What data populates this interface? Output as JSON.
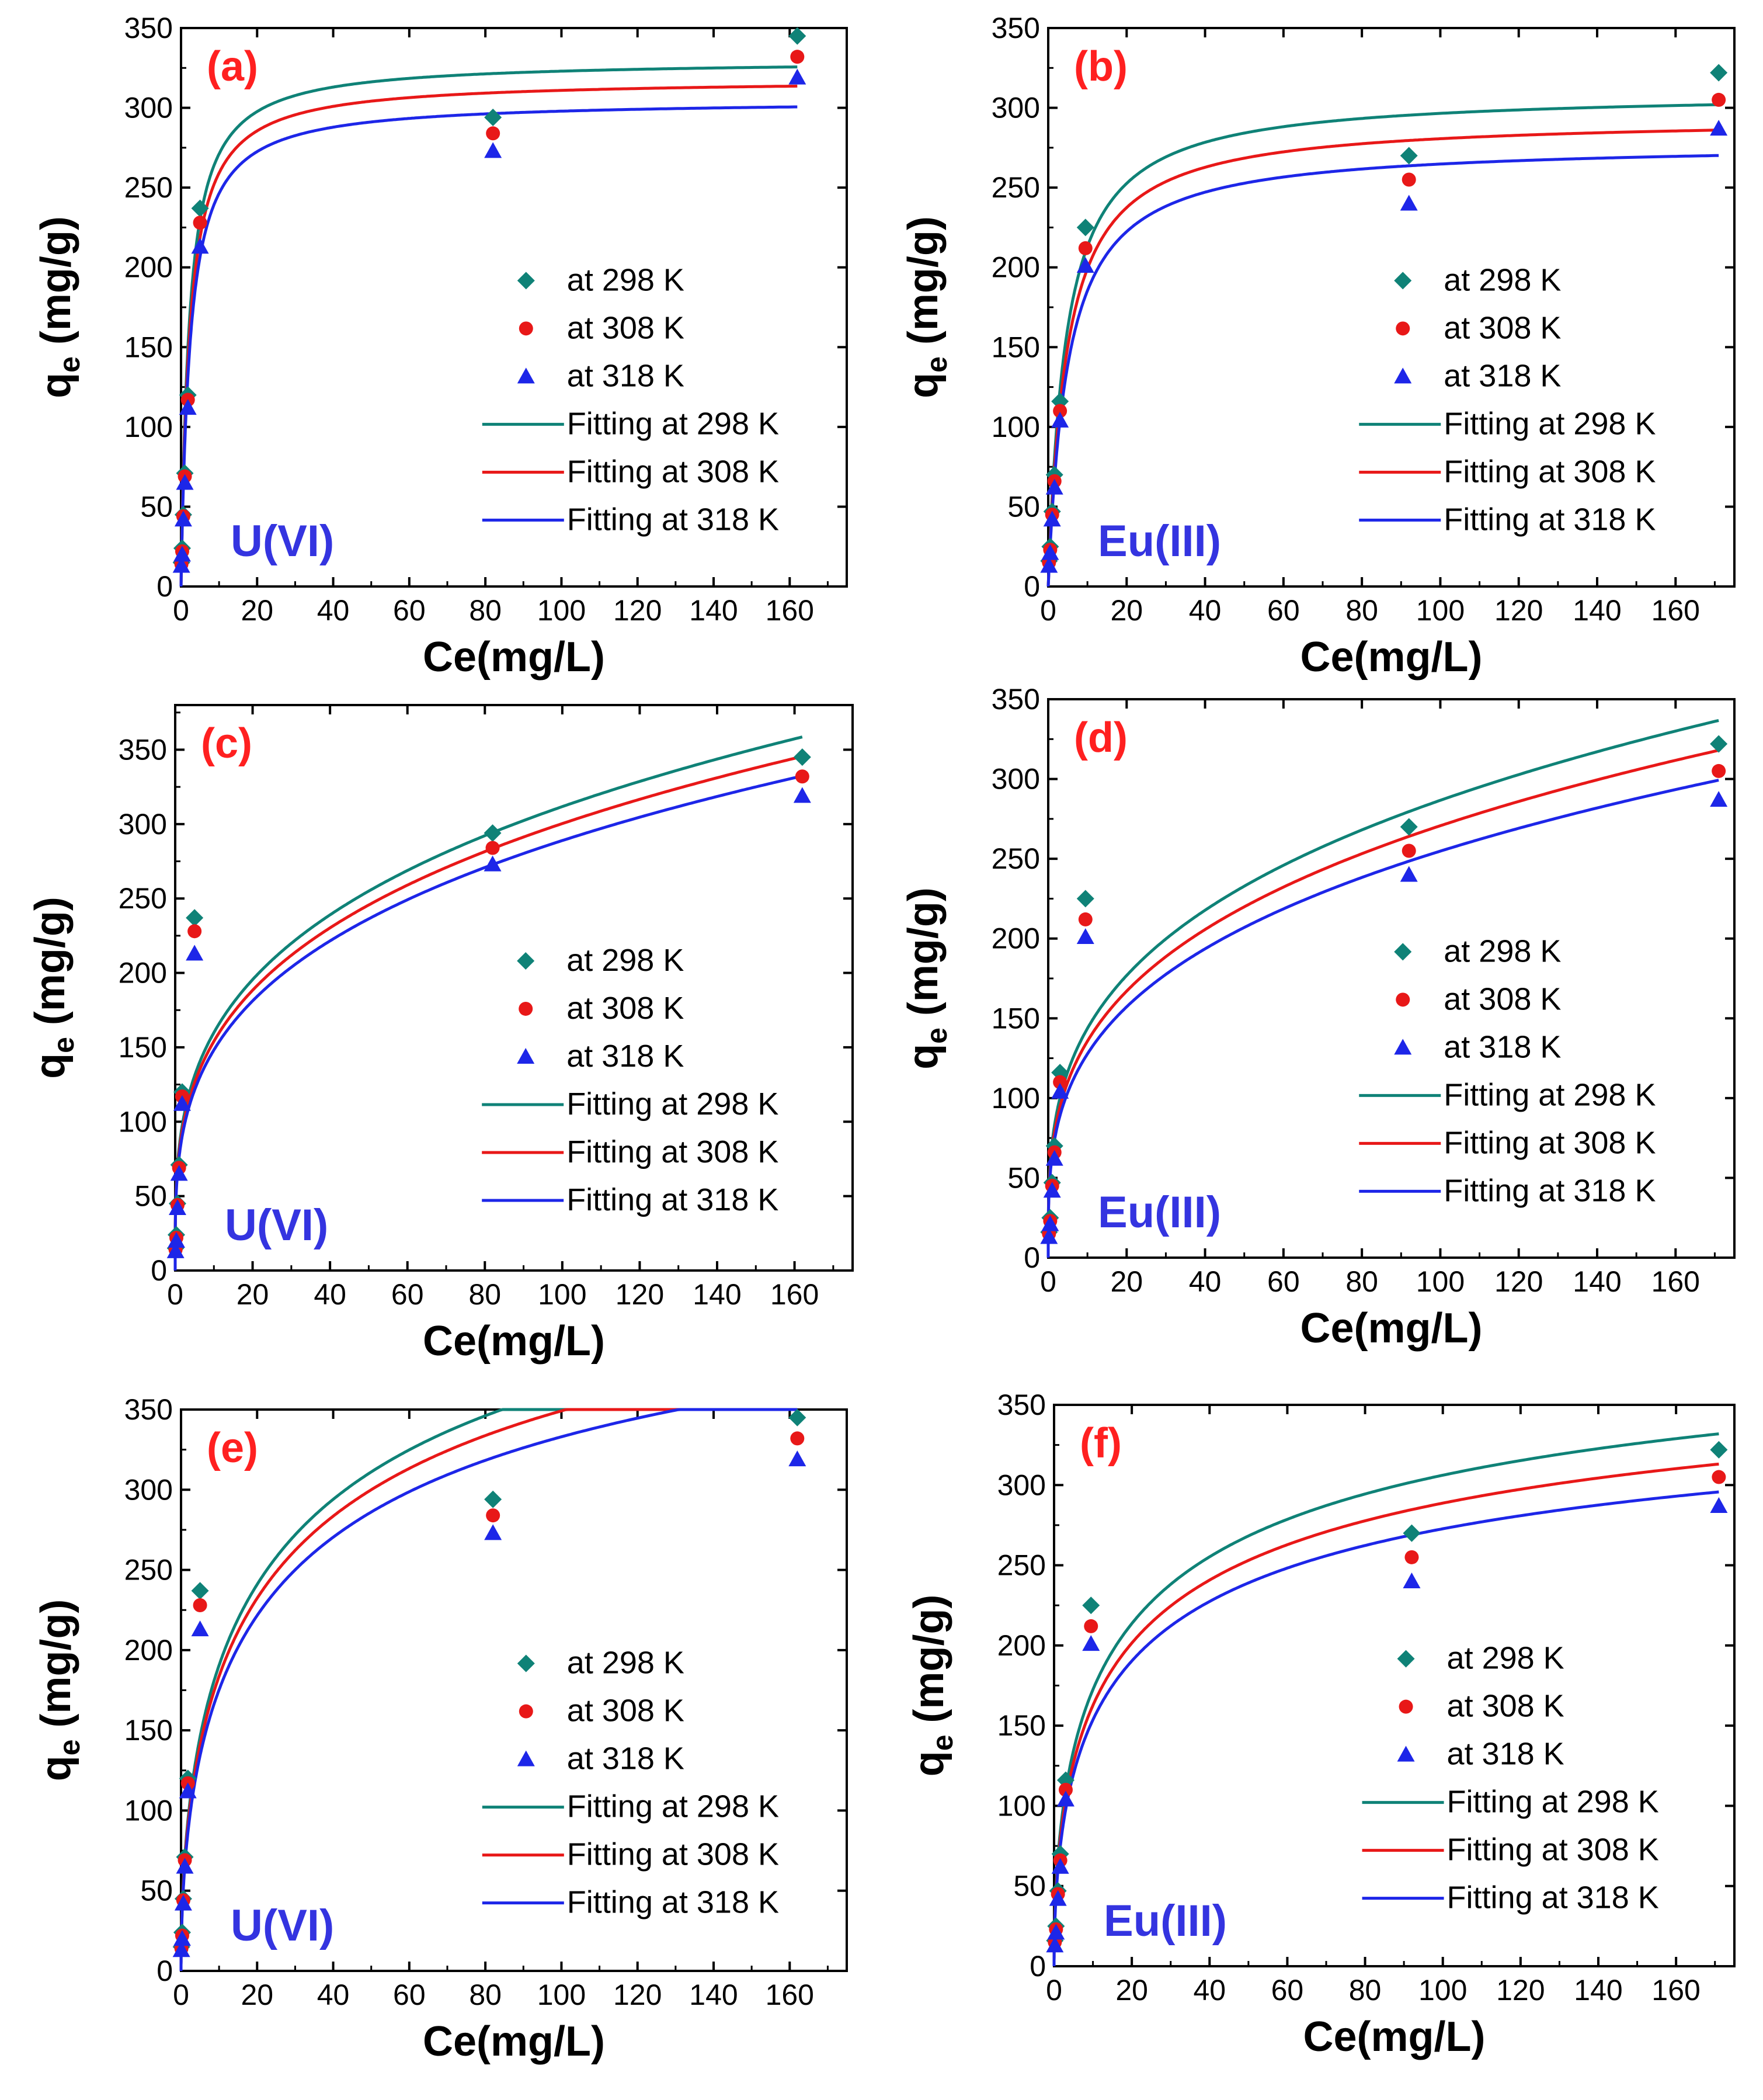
{
  "figure": {
    "description_free": true
  },
  "chart_data": [
    {
      "id": "a",
      "type": "scatter",
      "panel_label": "(a)",
      "ion_label": "U(VI)",
      "xlabel": "Ce(mg/L)",
      "ylabel_main": "q",
      "ylabel_sub": "e",
      "ylabel_unit": " (mg/g)",
      "xlim": [
        0,
        175
      ],
      "ylim": [
        0,
        350
      ],
      "xticks": [
        0,
        20,
        40,
        60,
        80,
        100,
        120,
        140,
        160
      ],
      "yticks": [
        0,
        50,
        100,
        150,
        200,
        250,
        300,
        350
      ],
      "model": {
        "kind": "langmuir",
        "params": [
          [
            330,
            0.46
          ],
          [
            318,
            0.44
          ],
          [
            305,
            0.42
          ]
        ]
      },
      "x": [
        0.1,
        0.3,
        0.6,
        1.0,
        1.8,
        5.0,
        82,
        162
      ],
      "series": [
        {
          "name": "at 298 K",
          "marker": "diamond",
          "color": "#0f8277",
          "values": [
            15,
            24,
            45,
            71,
            120,
            237,
            294,
            345
          ]
        },
        {
          "name": "at 308 K",
          "marker": "circle",
          "color": "#e81818",
          "values": [
            14,
            22,
            44,
            69,
            117,
            228,
            284,
            332
          ]
        },
        {
          "name": "at 318 K",
          "marker": "triangle",
          "color": "#1d26e8",
          "values": [
            13,
            20,
            42,
            65,
            112,
            213,
            273,
            319
          ]
        }
      ],
      "fit_series": [
        {
          "name": "Fitting at 298 K",
          "color": "#0f8277"
        },
        {
          "name": "Fitting at 308 K",
          "color": "#e81818"
        },
        {
          "name": "Fitting at 318 K",
          "color": "#1d26e8"
        }
      ]
    },
    {
      "id": "b",
      "type": "scatter",
      "panel_label": "(b)",
      "ion_label": "Eu(III)",
      "xlabel": "Ce(mg/L)",
      "ylabel_main": "q",
      "ylabel_sub": "e",
      "ylabel_unit": " (mg/g)",
      "xlim": [
        0,
        175
      ],
      "ylim": [
        0,
        350
      ],
      "xticks": [
        0,
        20,
        40,
        60,
        80,
        100,
        120,
        140,
        160
      ],
      "yticks": [
        0,
        50,
        100,
        150,
        200,
        250,
        300,
        350
      ],
      "model": {
        "kind": "langmuir",
        "params": [
          [
            310,
            0.22
          ],
          [
            294,
            0.21
          ],
          [
            278,
            0.2
          ]
        ]
      },
      "x": [
        0.2,
        0.5,
        1.0,
        1.6,
        3.0,
        9.5,
        92,
        171
      ],
      "series": [
        {
          "name": "at 298 K",
          "marker": "diamond",
          "color": "#0f8277",
          "values": [
            16,
            25,
            47,
            70,
            116,
            225,
            270,
            322
          ]
        },
        {
          "name": "at 308 K",
          "marker": "circle",
          "color": "#e81818",
          "values": [
            15,
            23,
            45,
            66,
            110,
            212,
            255,
            305
          ]
        },
        {
          "name": "at 318 K",
          "marker": "triangle",
          "color": "#1d26e8",
          "values": [
            13,
            21,
            42,
            62,
            104,
            201,
            240,
            287
          ]
        }
      ],
      "fit_series": [
        {
          "name": "Fitting at 298 K",
          "color": "#0f8277"
        },
        {
          "name": "Fitting at 308 K",
          "color": "#e81818"
        },
        {
          "name": "Fitting at 318 K",
          "color": "#1d26e8"
        }
      ]
    },
    {
      "id": "c",
      "type": "scatter",
      "panel_label": "(c)",
      "ion_label": "U(VI)",
      "xlabel": "Ce(mg/L)",
      "ylabel_main": "q",
      "ylabel_sub": "e",
      "ylabel_unit": " (mg/g)",
      "xlim": [
        0,
        175
      ],
      "ylim": [
        0,
        380
      ],
      "xticks": [
        0,
        20,
        40,
        60,
        80,
        100,
        120,
        140,
        160
      ],
      "yticks": [
        0,
        50,
        100,
        150,
        200,
        250,
        300,
        350
      ],
      "model": {
        "kind": "freundlich",
        "params": [
          [
            82,
            0.29
          ],
          [
            79,
            0.29
          ],
          [
            76,
            0.29
          ]
        ]
      },
      "x": [
        0.1,
        0.3,
        0.6,
        1.0,
        1.8,
        5.0,
        82,
        162
      ],
      "series": [
        {
          "name": "at 298 K",
          "marker": "diamond",
          "color": "#0f8277",
          "values": [
            15,
            24,
            45,
            71,
            120,
            237,
            294,
            345
          ]
        },
        {
          "name": "at 308 K",
          "marker": "circle",
          "color": "#e81818",
          "values": [
            14,
            22,
            44,
            69,
            117,
            228,
            284,
            332
          ]
        },
        {
          "name": "at 318 K",
          "marker": "triangle",
          "color": "#1d26e8",
          "values": [
            13,
            20,
            42,
            65,
            112,
            213,
            273,
            319
          ]
        }
      ],
      "fit_series": [
        {
          "name": "Fitting at 298 K",
          "color": "#0f8277"
        },
        {
          "name": "Fitting at 308 K",
          "color": "#e81818"
        },
        {
          "name": "Fitting at 318 K",
          "color": "#1d26e8"
        }
      ]
    },
    {
      "id": "d",
      "type": "scatter",
      "panel_label": "(d)",
      "ion_label": "Eu(III)",
      "xlabel": "Ce(mg/L)",
      "ylabel_main": "q",
      "ylabel_sub": "e",
      "ylabel_unit": " (mg/g)",
      "xlim": [
        0,
        175
      ],
      "ylim": [
        0,
        350
      ],
      "xticks": [
        0,
        20,
        40,
        60,
        80,
        100,
        120,
        140,
        160
      ],
      "yticks": [
        0,
        50,
        100,
        150,
        200,
        250,
        300,
        350
      ],
      "model": {
        "kind": "freundlich",
        "params": [
          [
            72,
            0.3
          ],
          [
            68,
            0.3
          ],
          [
            64,
            0.3
          ]
        ]
      },
      "x": [
        0.2,
        0.5,
        1.0,
        1.6,
        3.0,
        9.5,
        92,
        171
      ],
      "series": [
        {
          "name": "at 298 K",
          "marker": "diamond",
          "color": "#0f8277",
          "values": [
            16,
            25,
            47,
            70,
            116,
            225,
            270,
            322
          ]
        },
        {
          "name": "at 308 K",
          "marker": "circle",
          "color": "#e81818",
          "values": [
            15,
            23,
            45,
            66,
            110,
            212,
            255,
            305
          ]
        },
        {
          "name": "at 318 K",
          "marker": "triangle",
          "color": "#1d26e8",
          "values": [
            13,
            21,
            42,
            62,
            104,
            201,
            240,
            287
          ]
        }
      ],
      "fit_series": [
        {
          "name": "Fitting at 298 K",
          "color": "#0f8277"
        },
        {
          "name": "Fitting at 308 K",
          "color": "#e81818"
        },
        {
          "name": "Fitting at 318 K",
          "color": "#1d26e8"
        }
      ]
    },
    {
      "id": "e",
      "type": "scatter",
      "panel_label": "(e)",
      "ion_label": "U(VI)",
      "xlabel": "Ce(mg/L)",
      "ylabel_main": "q",
      "ylabel_sub": "e",
      "ylabel_unit": " (mg/g)",
      "xlim": [
        0,
        175
      ],
      "ylim": [
        0,
        350
      ],
      "xticks": [
        0,
        20,
        40,
        60,
        80,
        100,
        120,
        140,
        160
      ],
      "yticks": [
        0,
        50,
        100,
        150,
        200,
        250,
        300,
        350
      ],
      "model": {
        "kind": "sips",
        "params": [
          [
            560,
            0.03,
            0.55
          ],
          [
            540,
            0.03,
            0.55
          ],
          [
            515,
            0.03,
            0.55
          ]
        ]
      },
      "x": [
        0.1,
        0.3,
        0.6,
        1.0,
        1.8,
        5.0,
        82,
        162
      ],
      "series": [
        {
          "name": "at 298 K",
          "marker": "diamond",
          "color": "#0f8277",
          "values": [
            15,
            24,
            45,
            71,
            120,
            237,
            294,
            345
          ]
        },
        {
          "name": "at 308 K",
          "marker": "circle",
          "color": "#e81818",
          "values": [
            14,
            22,
            44,
            69,
            117,
            228,
            284,
            332
          ]
        },
        {
          "name": "at 318 K",
          "marker": "triangle",
          "color": "#1d26e8",
          "values": [
            13,
            20,
            42,
            65,
            112,
            213,
            273,
            319
          ]
        }
      ],
      "fit_series": [
        {
          "name": "Fitting at 298 K",
          "color": "#0f8277"
        },
        {
          "name": "Fitting at 308 K",
          "color": "#e81818"
        },
        {
          "name": "Fitting at 318 K",
          "color": "#1d26e8"
        }
      ]
    },
    {
      "id": "f",
      "type": "scatter",
      "panel_label": "(f)",
      "ion_label": "Eu(III)",
      "xlabel": "Ce(mg/L)",
      "ylabel_main": "q",
      "ylabel_sub": "e",
      "ylabel_unit": " (mg/g)",
      "xlim": [
        0,
        175
      ],
      "ylim": [
        0,
        350
      ],
      "xticks": [
        0,
        20,
        40,
        60,
        80,
        100,
        120,
        140,
        160
      ],
      "yticks": [
        0,
        50,
        100,
        150,
        200,
        250,
        300,
        350
      ],
      "model": {
        "kind": "sips",
        "params": [
          [
            440,
            0.045,
            0.55
          ],
          [
            415,
            0.045,
            0.55
          ],
          [
            392,
            0.045,
            0.55
          ]
        ]
      },
      "x": [
        0.2,
        0.5,
        1.0,
        1.6,
        3.0,
        9.5,
        92,
        171
      ],
      "series": [
        {
          "name": "at 298 K",
          "marker": "diamond",
          "color": "#0f8277",
          "values": [
            16,
            25,
            47,
            70,
            116,
            225,
            270,
            322
          ]
        },
        {
          "name": "at 308 K",
          "marker": "circle",
          "color": "#e81818",
          "values": [
            15,
            23,
            45,
            66,
            110,
            212,
            255,
            305
          ]
        },
        {
          "name": "at 318 K",
          "marker": "triangle",
          "color": "#1d26e8",
          "values": [
            13,
            21,
            42,
            62,
            104,
            201,
            240,
            287
          ]
        }
      ],
      "fit_series": [
        {
          "name": "Fitting at 298 K",
          "color": "#0f8277"
        },
        {
          "name": "Fitting at 308 K",
          "color": "#e81818"
        },
        {
          "name": "Fitting at 318 K",
          "color": "#1d26e8"
        }
      ]
    }
  ],
  "colors": {
    "panel_label": "#ff2020",
    "ion_label": "#3434e0",
    "axis": "#000000"
  }
}
